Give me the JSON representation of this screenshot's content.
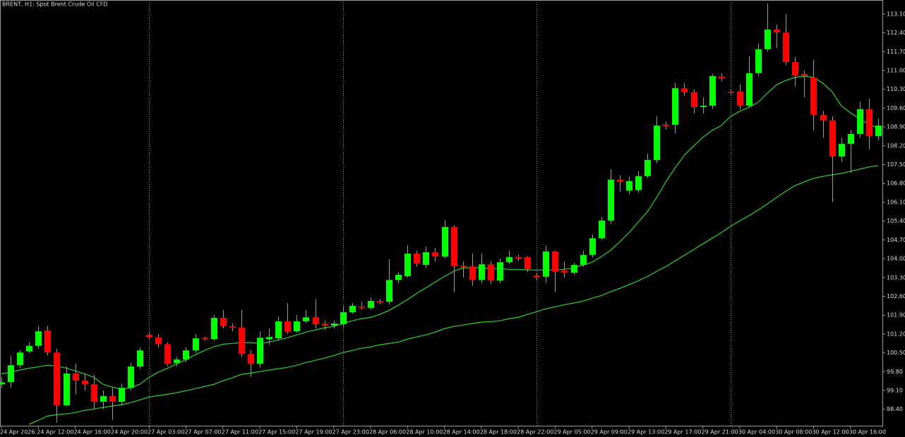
{
  "chart_data": {
    "type": "candlestick",
    "title": "BRENT, H1:  Spot Brent Crude Oil CFD",
    "categories": [
      "24 Apr 2026",
      null,
      null,
      null,
      "24 Apr 12:00",
      null,
      null,
      null,
      "24 Apr 16:00",
      null,
      null,
      null,
      "24 Apr 20:00",
      null,
      null,
      null,
      "27 Apr 03:00",
      null,
      null,
      null,
      "27 Apr 07:00",
      null,
      null,
      null,
      "27 Apr 11:00",
      null,
      null,
      null,
      "27 Apr 15:00",
      null,
      null,
      null,
      "27 Apr 19:00",
      null,
      null,
      null,
      "27 Apr 23:00",
      null,
      null,
      null,
      "28 Apr 06:00",
      null,
      null,
      null,
      "28 Apr 10:00",
      null,
      null,
      null,
      "28 Apr 14:00",
      null,
      null,
      null,
      "28 Apr 18:00",
      null,
      null,
      null,
      "28 Apr 22:00",
      null,
      null,
      null,
      "29 Apr 05:00",
      null,
      null,
      null,
      "29 Apr 09:00",
      null,
      null,
      null,
      "29 Apr 13:00",
      null,
      null,
      null,
      "29 Apr 17:00",
      null,
      null,
      null,
      "29 Apr 21:00",
      null,
      null,
      null,
      "30 Apr 04:00",
      null,
      null,
      null,
      "30 Apr 08:00",
      null,
      null,
      null,
      "30 Apr 12:00",
      null,
      null,
      null,
      "30 Apr 16:00",
      null,
      null,
      null
    ],
    "open": [
      99.33,
      99.41,
      100.04,
      100.55,
      100.76,
      101.33,
      100.51,
      98.55,
      99.73,
      99.47,
      99.33,
      98.68,
      98.89,
      98.68,
      99.2,
      99.99,
      101.17,
      101.08,
      100.82,
      100.12,
      100.25,
      100.59,
      101.06,
      101.01,
      101.8,
      101.49,
      101.44,
      100.46,
      100.09,
      101.0,
      101.04,
      101.67,
      101.3,
      101.67,
      101.82,
      101.58,
      101.51,
      101.56,
      102.01,
      102.22,
      102.17,
      102.43,
      102.4,
      103.21,
      103.35,
      104.19,
      103.77,
      104.24,
      104.08,
      105.18,
      103.74,
      103.72,
      103.21,
      103.79,
      103.19,
      103.87,
      104.06,
      104.06,
      103.37,
      103.33,
      104.27,
      103.56,
      103.48,
      103.77,
      104.14,
      104.76,
      105.42,
      106.94,
      106.53,
      106.55,
      107.07,
      107.67,
      108.98,
      108.98,
      110.34,
      110.19,
      109.64,
      109.69,
      110.77,
      110.2,
      110.22,
      109.69,
      110.9,
      111.79,
      112.52,
      112.41,
      111.31,
      110.87,
      110.74,
      109.35,
      109.14,
      107.8,
      108.27,
      108.64,
      109.56,
      108.56
    ],
    "high": [
      99.6,
      100.4,
      100.6,
      100.9,
      101.5,
      101.5,
      100.65,
      100.0,
      100.1,
      99.7,
      99.68,
      99.1,
      99.2,
      99.35,
      100.12,
      100.7,
      101.25,
      101.2,
      100.9,
      100.35,
      100.7,
      101.2,
      101.1,
      101.9,
      102.1,
      101.6,
      102.1,
      100.6,
      101.3,
      101.4,
      101.85,
      102.35,
      101.9,
      102.1,
      102.5,
      101.7,
      101.7,
      102.25,
      102.35,
      102.4,
      102.55,
      102.5,
      103.98,
      103.5,
      104.5,
      104.3,
      104.45,
      104.4,
      105.45,
      105.25,
      103.9,
      104.2,
      104.2,
      103.9,
      104.0,
      104.3,
      104.15,
      104.1,
      103.45,
      104.5,
      104.3,
      103.9,
      103.85,
      104.3,
      104.9,
      105.55,
      107.33,
      107.1,
      107.05,
      107.25,
      107.9,
      109.3,
      109.1,
      110.53,
      110.53,
      110.3,
      110.0,
      110.87,
      110.9,
      110.3,
      110.48,
      111.52,
      112.0,
      113.49,
      112.7,
      113.1,
      111.5,
      111.0,
      111.4,
      109.5,
      109.3,
      108.5,
      108.8,
      109.83,
      109.95,
      109.2
    ],
    "low": [
      99.2,
      99.2,
      99.95,
      100.5,
      100.65,
      100.4,
      97.9,
      98.5,
      98.95,
      99.1,
      98.42,
      98.4,
      98.0,
      98.55,
      99.1,
      99.9,
      101.0,
      100.7,
      100.0,
      100.0,
      100.15,
      100.5,
      100.95,
      100.95,
      101.4,
      101.3,
      100.35,
      99.6,
      99.95,
      100.8,
      100.95,
      101.2,
      101.25,
      101.6,
      101.4,
      101.35,
      101.4,
      101.45,
      101.95,
      102.1,
      102.1,
      102.3,
      102.3,
      103.1,
      103.3,
      103.7,
      103.65,
      103.9,
      104.0,
      102.75,
      103.3,
      103.0,
      103.1,
      103.05,
      103.1,
      103.8,
      103.9,
      103.5,
      103.2,
      103.1,
      102.75,
      103.3,
      103.4,
      103.7,
      104.05,
      104.7,
      105.3,
      106.5,
      106.4,
      106.45,
      107.0,
      107.55,
      108.8,
      108.65,
      110.05,
      109.4,
      109.4,
      109.56,
      110.6,
      110.1,
      109.56,
      109.6,
      110.8,
      111.7,
      111.84,
      111.2,
      110.4,
      110.0,
      108.77,
      108.5,
      106.1,
      107.6,
      107.2,
      108.5,
      108.06,
      108.4
    ],
    "close": [
      99.4,
      100.04,
      100.51,
      100.76,
      101.3,
      100.51,
      98.55,
      99.73,
      99.47,
      99.33,
      98.68,
      98.89,
      98.68,
      99.2,
      99.99,
      100.59,
      101.08,
      100.82,
      100.09,
      100.25,
      100.59,
      101.04,
      101.01,
      101.8,
      101.49,
      101.44,
      100.46,
      100.09,
      101.06,
      101.09,
      101.67,
      101.28,
      101.67,
      101.82,
      101.56,
      101.51,
      101.59,
      102.01,
      102.25,
      102.19,
      102.43,
      102.38,
      103.21,
      103.4,
      104.19,
      103.82,
      104.24,
      104.08,
      105.18,
      103.72,
      103.69,
      103.21,
      103.79,
      103.19,
      103.87,
      104.06,
      104.0,
      103.61,
      103.3,
      104.27,
      103.51,
      103.48,
      103.77,
      104.14,
      104.76,
      105.42,
      106.94,
      106.86,
      106.89,
      107.07,
      107.67,
      108.95,
      108.93,
      110.34,
      110.19,
      109.64,
      109.69,
      110.79,
      110.71,
      110.18,
      109.69,
      110.9,
      111.79,
      112.52,
      112.41,
      111.31,
      110.82,
      110.79,
      109.35,
      109.14,
      107.8,
      108.27,
      108.64,
      109.56,
      108.56,
      108.95
    ],
    "up_color": "#00ff00",
    "down_color": "#ff0000",
    "wick_color": "#9a9a9a",
    "overlays": [
      {
        "color": "#32cd32",
        "values": [
          99.72,
          99.78,
          99.86,
          99.93,
          99.98,
          100.04,
          100.01,
          99.93,
          99.83,
          99.72,
          99.59,
          99.33,
          99.23,
          99.15,
          99.2,
          99.33,
          99.59,
          99.78,
          99.93,
          100.09,
          100.25,
          100.43,
          100.59,
          100.72,
          100.82,
          100.85,
          100.88,
          100.88,
          100.85,
          100.9,
          100.98,
          101.06,
          101.17,
          101.27,
          101.35,
          101.43,
          101.48,
          101.59,
          101.69,
          101.77,
          101.82,
          101.93,
          102.08,
          102.27,
          102.48,
          102.71,
          102.92,
          103.13,
          103.34,
          103.53,
          103.66,
          103.66,
          103.66,
          103.63,
          103.63,
          103.6,
          103.6,
          103.58,
          103.58,
          103.58,
          103.58,
          103.6,
          103.66,
          103.76,
          103.87,
          104.08,
          104.31,
          104.63,
          104.97,
          105.36,
          105.75,
          106.28,
          106.86,
          107.38,
          107.85,
          108.19,
          108.51,
          108.77,
          108.95,
          109.29,
          109.48,
          109.63,
          109.82,
          110.16,
          110.47,
          110.63,
          110.74,
          110.79,
          110.74,
          110.53,
          110.21,
          109.69,
          109.42,
          109.21,
          109.0,
          108.85
        ]
      },
      {
        "color": "#32cd32",
        "values": [
          null,
          null,
          null,
          97.84,
          97.99,
          98.15,
          98.2,
          98.23,
          98.28,
          98.36,
          98.41,
          98.47,
          98.52,
          98.57,
          98.65,
          98.75,
          98.86,
          98.91,
          98.96,
          99.02,
          99.09,
          99.17,
          99.25,
          99.33,
          99.46,
          99.57,
          99.7,
          99.75,
          99.8,
          99.86,
          99.91,
          99.96,
          100.04,
          100.14,
          100.22,
          100.3,
          100.4,
          100.51,
          100.59,
          100.67,
          100.72,
          100.8,
          100.85,
          100.9,
          101.01,
          101.09,
          101.17,
          101.27,
          101.4,
          101.48,
          101.53,
          101.59,
          101.64,
          101.66,
          101.69,
          101.77,
          101.82,
          101.93,
          102.03,
          102.14,
          102.21,
          102.29,
          102.35,
          102.42,
          102.53,
          102.63,
          102.77,
          102.9,
          103.03,
          103.18,
          103.34,
          103.53,
          103.71,
          103.92,
          104.13,
          104.34,
          104.55,
          104.76,
          104.97,
          105.2,
          105.41,
          105.6,
          105.81,
          106.04,
          106.28,
          106.51,
          106.72,
          106.86,
          106.99,
          107.06,
          107.12,
          107.17,
          107.25,
          107.33,
          107.41,
          107.46
        ]
      }
    ],
    "day_separators": [
      16,
      37,
      58,
      79
    ],
    "ylim": [
      97.79,
      113.62
    ],
    "yticks": [
      {
        "value": 98.4,
        "label": "98.40"
      },
      {
        "value": 99.1,
        "label": "99.10"
      },
      {
        "value": 99.8,
        "label": "99.80"
      },
      {
        "value": 100.5,
        "label": "100.50"
      },
      {
        "value": 101.2,
        "label": "101.20"
      },
      {
        "value": 101.9,
        "label": "101.90"
      },
      {
        "value": 102.6,
        "label": "102.60"
      },
      {
        "value": 103.3,
        "label": "103.30"
      },
      {
        "value": 104,
        "label": "104.00"
      },
      {
        "value": 104.7,
        "label": "104.70"
      },
      {
        "value": 105.4,
        "label": "105.40"
      },
      {
        "value": 106.1,
        "label": "106.10"
      },
      {
        "value": 106.8,
        "label": "106.80"
      },
      {
        "value": 107.5,
        "label": "107.50"
      },
      {
        "value": 108.2,
        "label": "108.20"
      },
      {
        "value": 108.9,
        "label": "108.90"
      },
      {
        "value": 109.6,
        "label": "109.60"
      },
      {
        "value": 110.3,
        "label": "110.30"
      },
      {
        "value": 111,
        "label": "111.00"
      },
      {
        "value": 111.7,
        "label": "111.70"
      },
      {
        "value": 112.4,
        "label": "112.40"
      },
      {
        "value": 113.1,
        "label": "113.10"
      }
    ]
  }
}
